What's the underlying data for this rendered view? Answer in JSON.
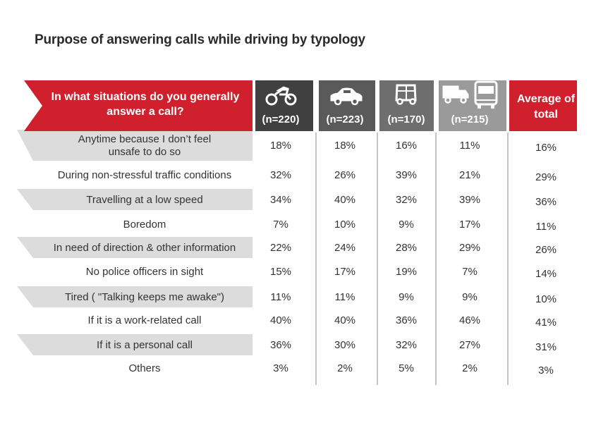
{
  "title": "Purpose of answering calls while driving by typology",
  "colors": {
    "accent_red": "#d0202e",
    "header_dark": "#404040",
    "header_mid": "#5a5a5a",
    "header_gray": "#6e6e6e",
    "header_light": "#9a9a9a",
    "stripe": "#dcdcdc",
    "divider": "#888888",
    "text": "#333333"
  },
  "chart_data": {
    "type": "table",
    "question": [
      "In what situations do you generally",
      "answer a call?"
    ],
    "columns": [
      {
        "icon": "motorcycle-icon",
        "label": "(n=220)"
      },
      {
        "icon": "car-icon",
        "label": "(n=223)"
      },
      {
        "icon": "auto-rickshaw-icon",
        "label": "(n=170)"
      },
      {
        "icon": "truck-bus-icon",
        "label": "(n=215)"
      },
      {
        "icon": "",
        "label": "Average of total"
      }
    ],
    "rows": [
      {
        "label": [
          "Anytime because I don’t feel",
          "unsafe to do so"
        ],
        "values": [
          "18%",
          "18%",
          "16%",
          "11%",
          "16%"
        ]
      },
      {
        "label": [
          "During non-stressful traffic conditions"
        ],
        "values": [
          "32%",
          "26%",
          "39%",
          "21%",
          "29%"
        ]
      },
      {
        "label": [
          "Travelling at a low speed"
        ],
        "values": [
          "34%",
          "40%",
          "32%",
          "39%",
          "36%"
        ]
      },
      {
        "label": [
          "Boredom"
        ],
        "values": [
          "7%",
          "10%",
          "9%",
          "17%",
          "11%"
        ]
      },
      {
        "label": [
          "In need of direction & other information"
        ],
        "values": [
          "22%",
          "24%",
          "28%",
          "29%",
          "26%"
        ]
      },
      {
        "label": [
          "No police officers in sight"
        ],
        "values": [
          "15%",
          "17%",
          "19%",
          "7%",
          "14%"
        ]
      },
      {
        "label": [
          "Tired ( \"Talking keeps me awake\")"
        ],
        "values": [
          "11%",
          "11%",
          "9%",
          "9%",
          "10%"
        ]
      },
      {
        "label": [
          "If it is a work-related call"
        ],
        "values": [
          "40%",
          "40%",
          "36%",
          "46%",
          "41%"
        ]
      },
      {
        "label": [
          "If it is a personal call"
        ],
        "values": [
          "36%",
          "30%",
          "32%",
          "27%",
          "31%"
        ]
      },
      {
        "label": [
          "Others"
        ],
        "values": [
          "3%",
          "2%",
          "5%",
          "2%",
          "3%"
        ]
      }
    ]
  }
}
